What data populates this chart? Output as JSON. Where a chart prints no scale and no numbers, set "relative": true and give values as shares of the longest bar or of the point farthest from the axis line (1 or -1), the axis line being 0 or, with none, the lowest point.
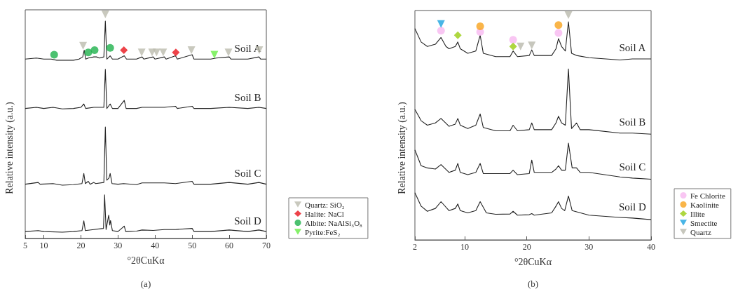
{
  "chart_data": [
    {
      "type": "line",
      "relative": true,
      "xlabel": "°2θCuKα",
      "ylabel": "Relative intensity (a.u.)",
      "xlim": [
        5,
        70
      ],
      "xticks": [
        5,
        10,
        20,
        30,
        40,
        50,
        60,
        70
      ],
      "legend": "right",
      "annotations": [
        "(a)"
      ],
      "series": [
        {
          "name": "Soil A",
          "type": "line",
          "color": "#222222",
          "x": [
            5,
            8,
            10,
            12,
            13.5,
            15,
            18,
            19.5,
            20.5,
            20.9,
            21.3,
            22,
            23.5,
            24.2,
            25,
            26.2,
            26.6,
            27,
            27.9,
            28.5,
            30,
            31.7,
            32.3,
            35,
            36.5,
            37,
            39.5,
            40,
            42.5,
            43,
            45.5,
            46,
            50,
            50.5,
            55,
            56.5,
            60,
            60.5,
            65,
            68,
            68.5,
            70
          ],
          "values": [
            0.8,
            0.805,
            0.8,
            0.8,
            0.795,
            0.795,
            0.795,
            0.8,
            0.81,
            0.84,
            0.8,
            0.805,
            0.81,
            0.81,
            0.805,
            0.81,
            0.97,
            0.8,
            0.815,
            0.8,
            0.8,
            0.815,
            0.8,
            0.8,
            0.81,
            0.8,
            0.81,
            0.8,
            0.81,
            0.8,
            0.815,
            0.8,
            0.82,
            0.8,
            0.8,
            0.805,
            0.81,
            0.8,
            0.8,
            0.81,
            0.8,
            0.8
          ]
        },
        {
          "name": "Soil B",
          "type": "line",
          "color": "#222222",
          "x": [
            5,
            8,
            10,
            12.5,
            15,
            18,
            20,
            20.8,
            21.3,
            23.5,
            26.2,
            26.6,
            27,
            27.9,
            28.5,
            30,
            31.7,
            32.2,
            35,
            36.5,
            39.5,
            42.5,
            45.5,
            46,
            50,
            50.5,
            55,
            60,
            65,
            68,
            70
          ],
          "values": [
            0.58,
            0.585,
            0.58,
            0.585,
            0.578,
            0.58,
            0.585,
            0.6,
            0.58,
            0.585,
            0.585,
            0.755,
            0.58,
            0.6,
            0.58,
            0.58,
            0.616,
            0.58,
            0.58,
            0.585,
            0.585,
            0.585,
            0.59,
            0.58,
            0.59,
            0.58,
            0.58,
            0.585,
            0.58,
            0.585,
            0.58
          ]
        },
        {
          "name": "Soil C",
          "type": "line",
          "color": "#222222",
          "x": [
            5,
            8.5,
            9,
            12.5,
            15,
            18,
            20.3,
            20.8,
            21.2,
            22,
            22.5,
            23.5,
            24,
            26.2,
            26.6,
            27,
            27.6,
            27.9,
            28.4,
            30,
            31.5,
            35,
            36.5,
            39.5,
            42.5,
            45.5,
            50,
            50.5,
            55,
            60,
            65,
            68,
            70
          ],
          "values": [
            0.242,
            0.25,
            0.242,
            0.245,
            0.238,
            0.24,
            0.245,
            0.29,
            0.245,
            0.255,
            0.242,
            0.25,
            0.245,
            0.25,
            0.497,
            0.26,
            0.27,
            0.29,
            0.245,
            0.242,
            0.245,
            0.24,
            0.248,
            0.248,
            0.248,
            0.245,
            0.255,
            0.242,
            0.242,
            0.25,
            0.242,
            0.25,
            0.242
          ]
        },
        {
          "name": "Soil D",
          "type": "line",
          "color": "#222222",
          "x": [
            5,
            8.5,
            10,
            15,
            18,
            20.3,
            20.8,
            21.2,
            23.5,
            26.1,
            26.4,
            26.8,
            27.5,
            27.8,
            28,
            28.5,
            30,
            31.7,
            32.1,
            35,
            36.5,
            39.5,
            42.5,
            45.5,
            50,
            50.5,
            55,
            60,
            65,
            68,
            70
          ],
          "values": [
            0.031,
            0.035,
            0.031,
            0.028,
            0.031,
            0.035,
            0.079,
            0.035,
            0.04,
            0.045,
            0.195,
            0.04,
            0.104,
            0.06,
            0.08,
            0.035,
            0.031,
            0.055,
            0.031,
            0.033,
            0.038,
            0.036,
            0.04,
            0.04,
            0.045,
            0.031,
            0.031,
            0.038,
            0.031,
            0.038,
            0.031
          ]
        },
        {
          "name": "Quartz: SiO₂",
          "type": "scatter",
          "marker": "triangle",
          "color": "#bcbcae",
          "x": [
            20.6,
            26.6,
            36.4,
            39.2,
            40.4,
            42.2,
            49.8,
            59.8,
            68.1
          ],
          "values": [
            0.86,
            1.0,
            0.83,
            0.83,
            0.83,
            0.83,
            0.84,
            0.83,
            0.84
          ]
        },
        {
          "name": "Halite: NaCl",
          "type": "scatter",
          "marker": "diamond",
          "color": "#e8141c",
          "x": [
            31.6,
            45.6
          ],
          "values": [
            0.84,
            0.83
          ]
        },
        {
          "name": "Albite: NaAlSi₃O₈",
          "type": "scatter",
          "marker": "circle",
          "color": "#1fb24c",
          "x": [
            12.8,
            22.0,
            23.7,
            27.9
          ],
          "values": [
            0.82,
            0.83,
            0.84,
            0.85
          ]
        },
        {
          "name": "Pyrite:FeS₂",
          "type": "scatter",
          "marker": "triangle",
          "color": "#66ee44",
          "x": [
            56.0
          ],
          "values": [
            0.82
          ]
        }
      ]
    },
    {
      "type": "line",
      "relative": true,
      "xlabel": "°2θCuKα",
      "ylabel": "Relative intensity (a.u.)",
      "xlim": [
        2,
        40
      ],
      "xticks": [
        2,
        10,
        20,
        30,
        40
      ],
      "legend": "right",
      "annotations": [
        "(b)"
      ],
      "series": [
        {
          "name": "Soil A",
          "type": "line",
          "color": "#222222",
          "x": [
            2,
            3,
            4,
            5.3,
            6.2,
            7,
            7.5,
            8.5,
            8.9,
            9.3,
            10.5,
            11.8,
            12.5,
            13,
            15,
            17.3,
            17.8,
            18.5,
            20.4,
            20.8,
            21.2,
            24,
            24.7,
            25.1,
            25.6,
            26.2,
            26.7,
            27.2,
            28,
            30,
            35,
            37,
            40
          ],
          "values": [
            0.94,
            0.88,
            0.86,
            0.87,
            0.9,
            0.86,
            0.85,
            0.86,
            0.88,
            0.85,
            0.83,
            0.84,
            0.91,
            0.83,
            0.815,
            0.815,
            0.84,
            0.815,
            0.82,
            0.845,
            0.82,
            0.82,
            0.85,
            0.895,
            0.86,
            0.84,
            0.97,
            0.83,
            0.82,
            0.81,
            0.8,
            0.805,
            0.805
          ]
        },
        {
          "name": "Soil B",
          "type": "line",
          "color": "#222222",
          "x": [
            2,
            3,
            4,
            5.3,
            6.2,
            7.5,
            8.5,
            8.9,
            9.3,
            10.5,
            11.8,
            12.5,
            13,
            15,
            17.3,
            17.8,
            18.5,
            20.4,
            20.8,
            21.2,
            24,
            24.7,
            25.1,
            25.6,
            26.2,
            26.7,
            27.2,
            28,
            28.6,
            30,
            35,
            37,
            40
          ],
          "values": [
            0.58,
            0.53,
            0.51,
            0.52,
            0.54,
            0.505,
            0.515,
            0.54,
            0.51,
            0.495,
            0.51,
            0.56,
            0.5,
            0.485,
            0.485,
            0.51,
            0.485,
            0.49,
            0.52,
            0.49,
            0.49,
            0.52,
            0.55,
            0.52,
            0.51,
            0.76,
            0.495,
            0.52,
            0.49,
            0.49,
            0.475,
            0.475,
            0.47
          ]
        },
        {
          "name": "Soil C",
          "type": "line",
          "color": "#222222",
          "x": [
            2,
            3,
            4,
            5.3,
            6.2,
            7.5,
            8.5,
            8.9,
            9.3,
            10.5,
            11.8,
            12.5,
            13,
            15,
            17.3,
            17.8,
            18.5,
            20.4,
            20.8,
            21.2,
            24,
            24.7,
            25.1,
            25.6,
            26.2,
            26.7,
            27.3,
            28,
            28.6,
            30,
            35,
            37,
            40
          ],
          "values": [
            0.4,
            0.33,
            0.32,
            0.315,
            0.335,
            0.3,
            0.31,
            0.34,
            0.3,
            0.29,
            0.3,
            0.34,
            0.295,
            0.295,
            0.295,
            0.31,
            0.29,
            0.295,
            0.355,
            0.3,
            0.3,
            0.315,
            0.33,
            0.31,
            0.31,
            0.43,
            0.32,
            0.32,
            0.3,
            0.3,
            0.28,
            0.275,
            0.27
          ]
        },
        {
          "name": "Soil D",
          "type": "line",
          "color": "#222222",
          "x": [
            2,
            3,
            4,
            5.3,
            6.2,
            7.5,
            8.5,
            8.9,
            9.3,
            10.5,
            11.8,
            12.5,
            13.5,
            15,
            17.3,
            17.8,
            18.5,
            20.4,
            20.8,
            21.2,
            24,
            24.7,
            25.1,
            25.6,
            26.1,
            26.7,
            27.3,
            30,
            35,
            37,
            40
          ],
          "values": [
            0.21,
            0.15,
            0.127,
            0.14,
            0.17,
            0.13,
            0.14,
            0.16,
            0.13,
            0.12,
            0.13,
            0.17,
            0.12,
            0.114,
            0.115,
            0.127,
            0.11,
            0.112,
            0.117,
            0.11,
            0.12,
            0.15,
            0.17,
            0.14,
            0.13,
            0.195,
            0.13,
            0.11,
            0.1,
            0.097,
            0.09
          ]
        },
        {
          "name": "Fe Chlorite",
          "type": "scatter",
          "marker": "circle",
          "color": "#f7b8f0",
          "x": [
            6.2,
            12.5,
            17.8,
            25.1
          ],
          "values": [
            0.93,
            0.925,
            0.89,
            0.92
          ]
        },
        {
          "name": "Kaolinite",
          "type": "scatter",
          "marker": "circle",
          "color": "#f7a21b",
          "x": [
            12.5,
            25.1
          ],
          "values": [
            0.95,
            0.955
          ]
        },
        {
          "name": "Illite",
          "type": "scatter",
          "marker": "diamond",
          "color": "#9acd10",
          "x": [
            8.9,
            17.8
          ],
          "values": [
            0.91,
            0.86
          ]
        },
        {
          "name": "Smectite",
          "type": "scatter",
          "marker": "triangle",
          "color": "#1aa3e0",
          "x": [
            6.2
          ],
          "values": [
            0.96
          ]
        },
        {
          "name": "Quartz",
          "type": "scatter",
          "marker": "triangle",
          "color": "#b9b9ad",
          "x": [
            19.0,
            20.8,
            26.7
          ],
          "values": [
            0.86,
            0.865,
            1.0
          ]
        }
      ]
    }
  ]
}
